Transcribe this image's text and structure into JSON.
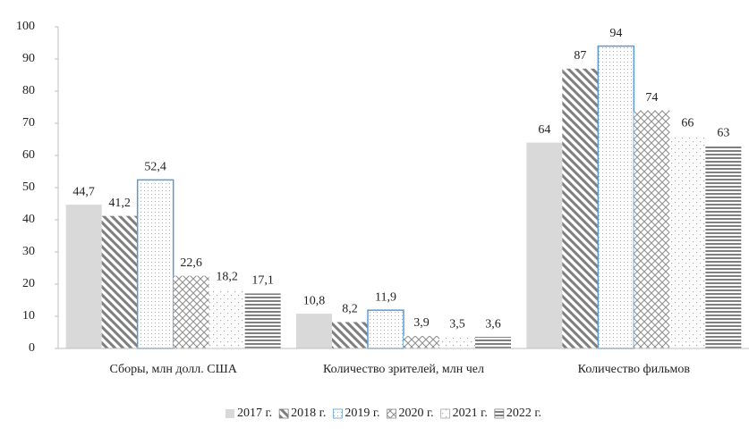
{
  "chart_data": {
    "type": "bar",
    "categories": [
      "Сборы, млн долл. США",
      "Количество зрителей, млн чел",
      "Количество фильмов"
    ],
    "series": [
      {
        "name": "2017 г.",
        "color": "#d9d9d9",
        "pattern": "solid",
        "values": [
          44.7,
          10.8,
          64
        ],
        "value_labels": [
          "44,7",
          "10,8",
          "64"
        ]
      },
      {
        "name": "2018 г.",
        "color": "#7f7f7f",
        "pattern": "diagonal",
        "values": [
          41.2,
          8.2,
          87
        ],
        "value_labels": [
          "41,2",
          "8,2",
          "87"
        ]
      },
      {
        "name": "2019 г.",
        "color": "#5b9bd5",
        "pattern": "fine-dots",
        "values": [
          52.4,
          11.9,
          94
        ],
        "value_labels": [
          "52,4",
          "11,9",
          "94"
        ]
      },
      {
        "name": "2020 г.",
        "color": "#8c8c8c",
        "pattern": "crosshatch",
        "values": [
          22.6,
          3.9,
          74
        ],
        "value_labels": [
          "22,6",
          "3,9",
          "74"
        ]
      },
      {
        "name": "2021 г.",
        "color": "#a6a6a6",
        "pattern": "dots",
        "values": [
          18.2,
          3.5,
          66
        ],
        "value_labels": [
          "18,2",
          "3,5",
          "66"
        ]
      },
      {
        "name": "2022 г.",
        "color": "#7f7f7f",
        "pattern": "horizontal",
        "values": [
          17.1,
          3.6,
          63
        ],
        "value_labels": [
          "17,1",
          "3,6",
          "63"
        ]
      }
    ],
    "ylim": [
      0,
      100
    ],
    "yticks": [
      0,
      10,
      20,
      30,
      40,
      50,
      60,
      70,
      80,
      90,
      100
    ],
    "grid": false,
    "legend": "bottom"
  }
}
